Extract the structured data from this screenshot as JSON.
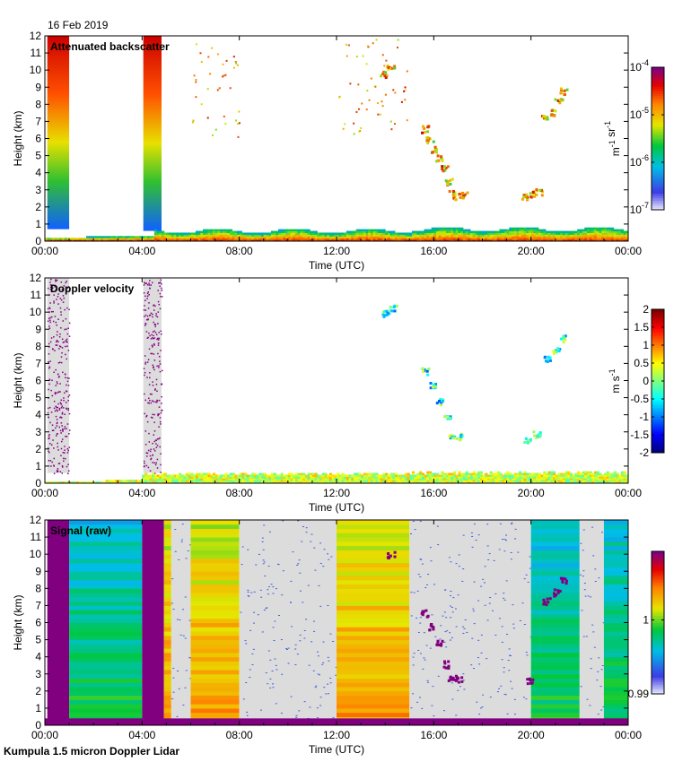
{
  "date": "16 Feb 2019",
  "footer": "Kumpula 1.5 micron Doppler Lidar",
  "colors": {
    "missing_gray": "#dcdcdc",
    "purple": "#800080",
    "dark_red": "#8b0000"
  },
  "chart_data": [
    {
      "type": "heatmap",
      "title": "Attenuated backscatter",
      "xlabel": "Time (UTC)",
      "ylabel": "Height (km)",
      "xlim": [
        0,
        24
      ],
      "ylim": [
        0,
        12
      ],
      "xticks": [
        "00:00",
        "04:00",
        "08:00",
        "12:00",
        "16:00",
        "20:00",
        "00:00"
      ],
      "yticks": [
        0,
        1,
        2,
        3,
        4,
        5,
        6,
        7,
        8,
        9,
        10,
        11,
        12
      ],
      "colorbar": {
        "scale": "log",
        "labels": [
          "10-7",
          "10-6",
          "10-5",
          "10-4"
        ],
        "unit": "m-1 sr-1"
      },
      "features": [
        {
          "name": "boundary layer aerosol",
          "t": [
            0,
            24
          ],
          "z": [
            0,
            0.6
          ]
        },
        {
          "name": "cloud column",
          "t": [
            0.1,
            1.0
          ],
          "z": [
            0.7,
            12
          ]
        },
        {
          "name": "cloud column",
          "t": [
            4.0,
            4.8
          ],
          "z": [
            0.6,
            12
          ]
        },
        {
          "name": "sloping cloud",
          "t": [
            15.5,
            17.2
          ],
          "z": [
            2.5,
            6.8
          ]
        },
        {
          "name": "cloud patch",
          "t": [
            19.6,
            20.4
          ],
          "z": [
            2.3,
            3.0
          ]
        },
        {
          "name": "cloud patch",
          "t": [
            20.3,
            21.3
          ],
          "z": [
            6.8,
            8.8
          ]
        },
        {
          "name": "cloud patch",
          "t": [
            13.8,
            14.5
          ],
          "z": [
            9.3,
            10.3
          ]
        }
      ]
    },
    {
      "type": "heatmap",
      "title": "Doppler velocity",
      "xlabel": "Time (UTC)",
      "ylabel": "Height (km)",
      "xlim": [
        0,
        24
      ],
      "ylim": [
        0,
        12
      ],
      "xticks": [
        "00:00",
        "04:00",
        "08:00",
        "12:00",
        "16:00",
        "20:00",
        "00:00"
      ],
      "yticks": [
        0,
        1,
        2,
        3,
        4,
        5,
        6,
        7,
        8,
        9,
        10,
        11,
        12
      ],
      "colorbar": {
        "scale": "linear",
        "range": [
          -2,
          2
        ],
        "labels": [
          "-2",
          "-1.5",
          "-1",
          "-0.5",
          "0",
          "0.5",
          "1",
          "1.5",
          "2"
        ],
        "unit": "m s-1"
      }
    },
    {
      "type": "heatmap",
      "title": "Signal (raw)",
      "xlabel": "Time (UTC)",
      "ylabel": "Height (km)",
      "xlim": [
        0,
        24
      ],
      "ylim": [
        0,
        12
      ],
      "xticks": [
        "00:00",
        "04:00",
        "08:00",
        "12:00",
        "16:00",
        "20:00",
        "00:00"
      ],
      "yticks": [
        0,
        1,
        2,
        3,
        4,
        5,
        6,
        7,
        8,
        9,
        10,
        11,
        12
      ],
      "colorbar": {
        "scale": "linear",
        "range": [
          0.99,
          1.01
        ],
        "labels": [
          "0.99",
          "1"
        ]
      },
      "bands": [
        {
          "t": [
            0.1,
            1.0
          ],
          "level": "purple"
        },
        {
          "t": [
            1.0,
            4.0
          ],
          "level": "green"
        },
        {
          "t": [
            4.0,
            4.9
          ],
          "level": "purple"
        },
        {
          "t": [
            4.9,
            5.2
          ],
          "level": "orange"
        },
        {
          "t": [
            5.2,
            6.0
          ],
          "level": "gray"
        },
        {
          "t": [
            6.0,
            8.0
          ],
          "level": "orange"
        },
        {
          "t": [
            8.0,
            12.0
          ],
          "level": "gray"
        },
        {
          "t": [
            12.0,
            15.0
          ],
          "level": "orange"
        },
        {
          "t": [
            15.0,
            20.0
          ],
          "level": "gray"
        },
        {
          "t": [
            20.0,
            22.0
          ],
          "level": "green"
        },
        {
          "t": [
            22.0,
            23.0
          ],
          "level": "gray"
        },
        {
          "t": [
            23.0,
            24.0
          ],
          "level": "green"
        }
      ]
    }
  ]
}
